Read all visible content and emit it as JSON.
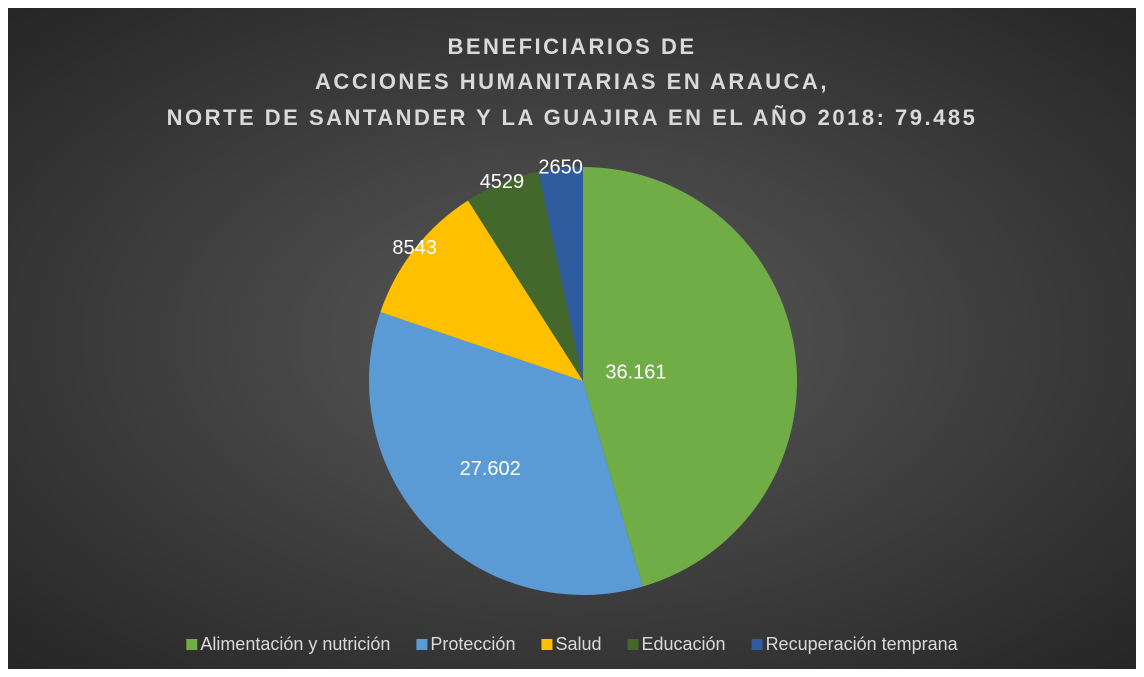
{
  "chart_data": {
    "type": "pie",
    "title": [
      "BENEFICIARIOS DE",
      "ACCIONES HUMANITARIAS EN ARAUCA,",
      "NORTE DE SANTANDER Y LA GUAJIRA EN EL AÑO 2018: 79.485"
    ],
    "categories": [
      "Alimentación y nutrición",
      "Protección",
      "Salud",
      "Educación",
      "Recuperación temprana"
    ],
    "values": [
      36161,
      27602,
      8543,
      4529,
      2650
    ],
    "value_labels": [
      "36.161",
      "27.602",
      "8543",
      "4529",
      "2650"
    ],
    "colors": [
      "#70ad47",
      "#5b9bd5",
      "#ffc000",
      "#43682b",
      "#2e5c9e"
    ],
    "legend": "bottom"
  }
}
